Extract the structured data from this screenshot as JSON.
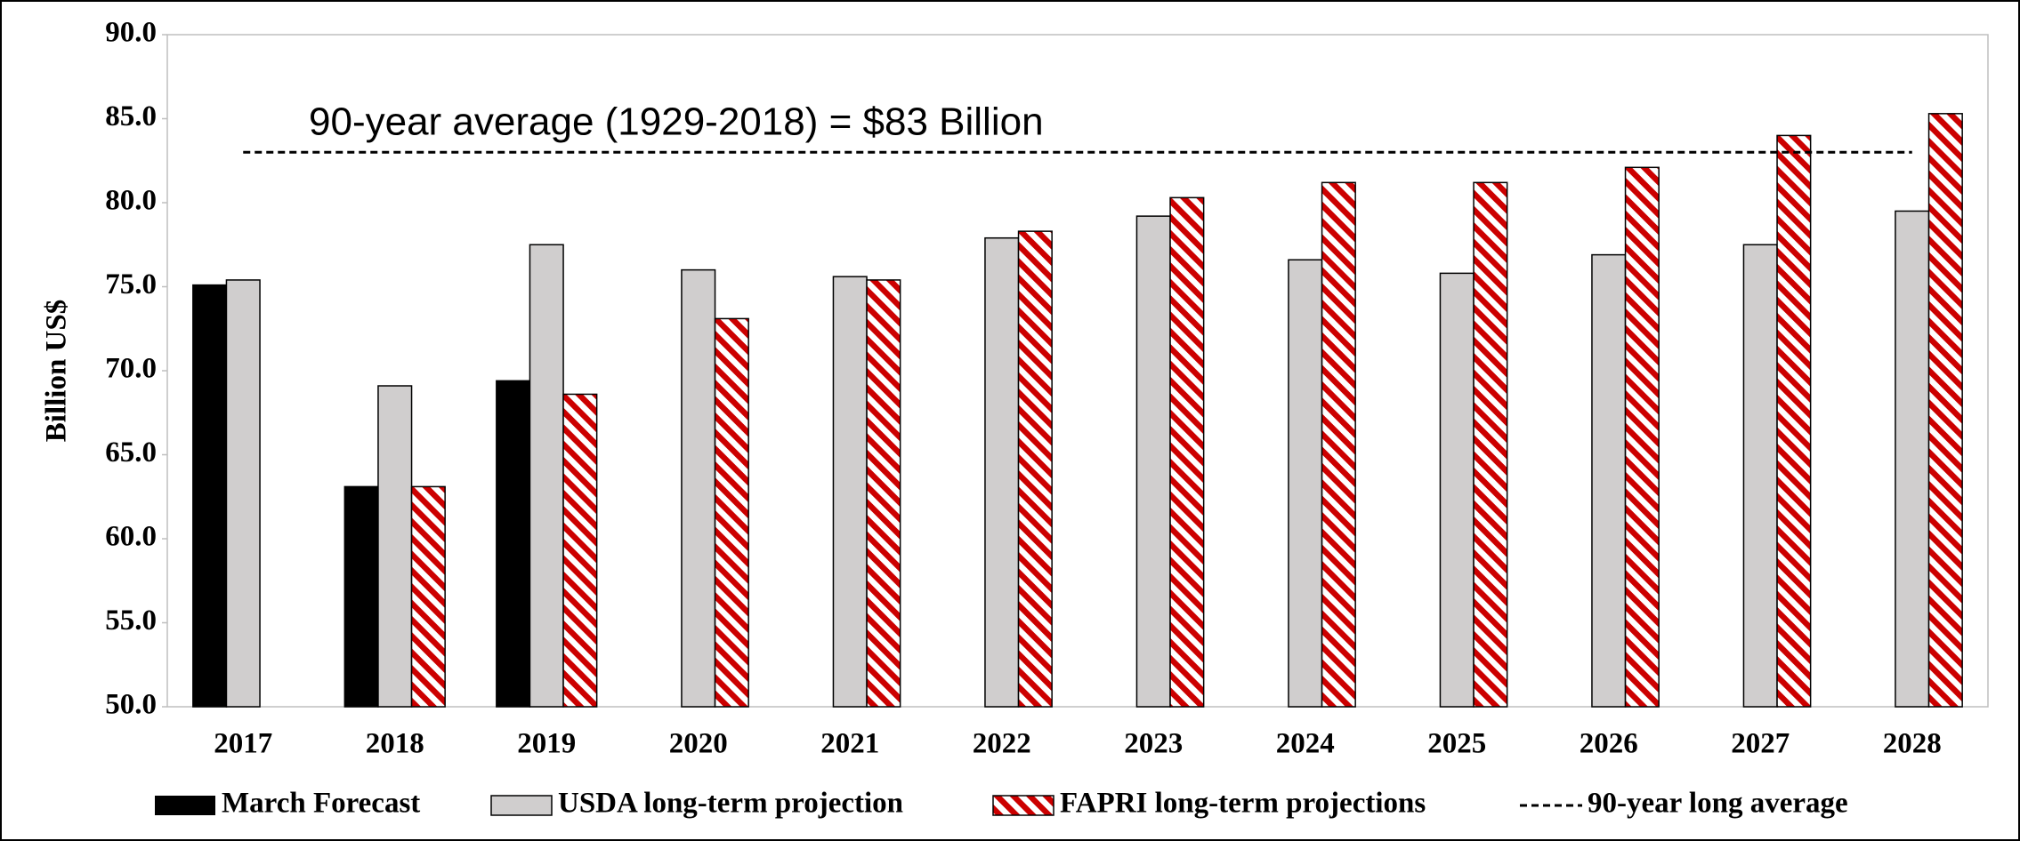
{
  "chart_data": {
    "type": "bar",
    "y_label": "Billion US$",
    "categories": [
      "2017",
      "2018",
      "2019",
      "2020",
      "2021",
      "2022",
      "2023",
      "2024",
      "2025",
      "2026",
      "2027",
      "2028"
    ],
    "series": [
      {
        "name": "March Forecast",
        "color": "#000000",
        "values": [
          75.1,
          63.1,
          69.4,
          null,
          null,
          null,
          null,
          null,
          null,
          null,
          null,
          null
        ]
      },
      {
        "name": "USDA long-term projection",
        "color": "#d0cece",
        "values": [
          75.4,
          69.1,
          77.5,
          76.0,
          75.6,
          77.9,
          79.2,
          76.6,
          75.8,
          76.9,
          77.5,
          79.5
        ]
      },
      {
        "name": "FAPRI long-term projections",
        "color": "#cc0000",
        "hatch": true,
        "values": [
          null,
          63.1,
          68.6,
          73.1,
          75.4,
          78.3,
          80.3,
          81.2,
          81.2,
          82.1,
          84.0,
          85.3
        ]
      }
    ],
    "reference_line": {
      "name": "90-year long average",
      "value": 83,
      "annotation": "90-year average (1929-2018) = $83 Billion"
    },
    "ylim": [
      50,
      90
    ],
    "yticks": [
      {
        "value": 50,
        "label": "50.0"
      },
      {
        "value": 55,
        "label": "55.0"
      },
      {
        "value": 60,
        "label": "60.0"
      },
      {
        "value": 65,
        "label": "65.0"
      },
      {
        "value": 70,
        "label": "70.0"
      },
      {
        "value": 75,
        "label": "75.0"
      },
      {
        "value": 80,
        "label": "80.0"
      },
      {
        "value": 85,
        "label": "85.0"
      },
      {
        "value": 90,
        "label": "90.0"
      }
    ],
    "legend": "bottom"
  }
}
